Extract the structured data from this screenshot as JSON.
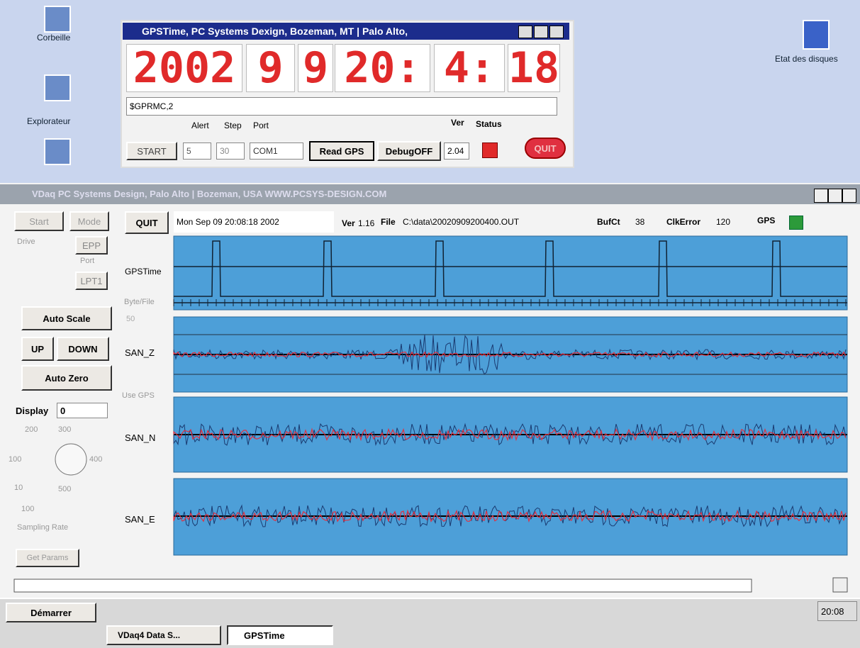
{
  "desktop": {
    "icons": [
      "Corbeille",
      "Explorateur",
      "Etat des disques"
    ]
  },
  "gps_window": {
    "title": "GPSTime, PC Systems Dexign,  Bozeman, MT | Palo Alto,",
    "clock": [
      "2002",
      "9",
      "9",
      "20:",
      "4:",
      "18"
    ],
    "nmea": "$GPRMC,2",
    "labels": {
      "alert": "Alert",
      "step": "Step",
      "port": "Port",
      "ver": "Ver",
      "status": "Status"
    },
    "start": "START",
    "alert_value": "5",
    "step_value": "30",
    "port_value": "COM1",
    "read": "Read GPS",
    "debug": "DebugOFF",
    "version": "2.04",
    "quit": "QUIT"
  },
  "vdaq_window": {
    "title": "VDaq  PC Systems Design, Palo Alto | Bozeman, USA   WWW.PCSYS-DESIGN.COM",
    "left_panel": {
      "start": "Start",
      "mode": "Mode",
      "drive": "Drive",
      "epp": "EPP",
      "port": "Port",
      "lpt": "LPT1",
      "auto_scale": "Auto Scale",
      "up": "UP",
      "down": "DOWN",
      "auto_zero": "Auto Zero",
      "display": "Display",
      "display_value": "0",
      "dial": [
        "200",
        "300",
        "100",
        "400",
        "10",
        "500"
      ],
      "rate_value": "100",
      "sampling_rate": "Sampling Rate",
      "get_params": "Get Params"
    },
    "status_bar": {
      "quit": "QUIT",
      "date": "Mon Sep 09 20:08:18 2002",
      "ver_label": "Ver",
      "ver": "1.16",
      "file_label": "File",
      "file": "C:\\data\\20020909200400.OUT",
      "bufct_label": "BufCt",
      "bufct": "38",
      "clkerror_label": "ClkError",
      "clkerror": "120",
      "gps_label": "GPS"
    },
    "channels": {
      "gpstime": "GPSTime",
      "bytefile": "Byte/File",
      "spin": "50",
      "san_z": "SAN_Z",
      "use_gps": "Use GPS",
      "san_n": "SAN_N",
      "san_e": "SAN_E"
    }
  },
  "taskbar": {
    "start": "Démarrer",
    "tasks": [
      "VDaq4 Data S...",
      "GPSTime"
    ],
    "clock": "20:08"
  }
}
